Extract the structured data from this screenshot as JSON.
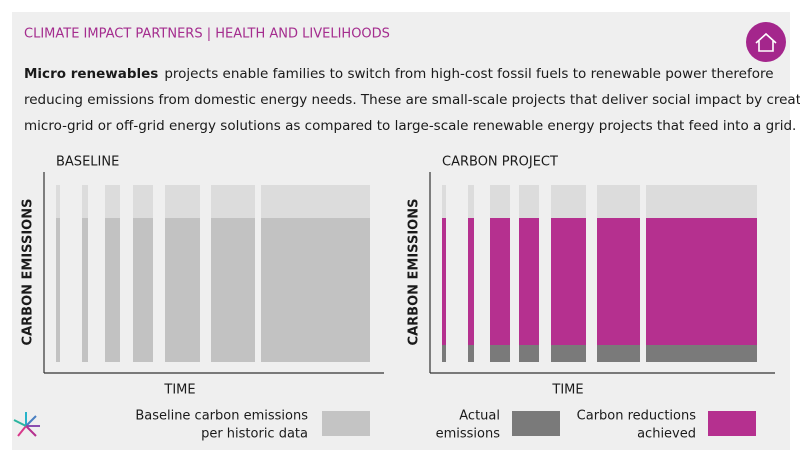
{
  "header": {
    "title": "CLIMATE IMPACT PARTNERS | HEALTH AND LIVELIHOODS"
  },
  "intro": {
    "bold": "Micro renewables",
    "lines": [
      "projects enable families to switch from high-cost fossil fuels to renewable power therefore",
      "reducing emissions from domestic energy needs. These are small-scale projects that deliver social impact by creating",
      "micro-grid or off-grid energy solutions as compared to large-scale renewable energy projects that feed into a grid."
    ]
  },
  "panels": [
    {
      "title": "BASELINE",
      "y_label": "CARBON EMISSIONS",
      "x_label": "TIME"
    },
    {
      "title": "CARBON PROJECT",
      "y_label": "CARBON EMISSIONS",
      "x_label": "TIME"
    }
  ],
  "legend": [
    {
      "lines": [
        "Baseline carbon emissions",
        "per historic data"
      ]
    },
    {
      "lines": [
        "Actual",
        "emissions"
      ]
    },
    {
      "lines": [
        "Carbon reductions",
        "achieved"
      ]
    }
  ]
}
